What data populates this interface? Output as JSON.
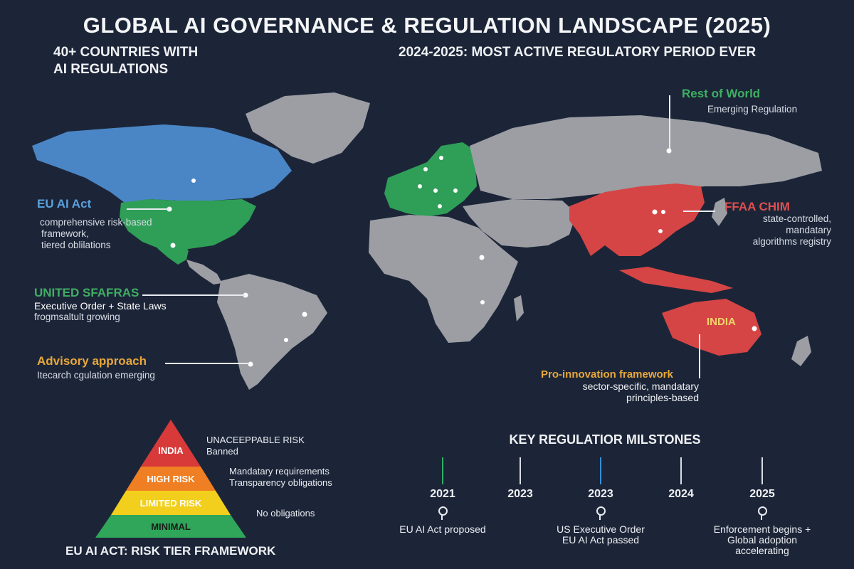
{
  "header": {
    "title": "GLOBAL AI GOVERNANCE & REGULATION LANDSCAPE (2025)",
    "stat_left_line1": "40+ COUNTRIES WITH",
    "stat_left_line2": "AI REGULATIONS",
    "stat_right": "2024-2025: MOST ACTIVE REGULATORY PERIOD EVER"
  },
  "colors": {
    "background": "#1c2538",
    "land": "#9c9ea3",
    "us_canada": "#4a86c6",
    "green_region": "#2f9e57",
    "red_region": "#d64545",
    "label_blue": "#5aa0dc",
    "label_green": "#3fae63",
    "label_red": "#e05050",
    "label_orange": "#e8a83a"
  },
  "map_labels": {
    "rest_of_world": {
      "title": "Rest of World",
      "desc": "Emerging Regulation"
    },
    "eu": {
      "title": "EU AI Act",
      "desc_lines": [
        "comprehensive risk-based",
        "framework,",
        "tiered oblilations"
      ]
    },
    "us": {
      "title": "UNITED SFAFRAS",
      "desc_line1": "Executive Order + State Laws",
      "desc_line2": "frogmsaltult growing"
    },
    "advisory": {
      "title": "Advisory approach",
      "desc": "Itecarch cgulation emerging"
    },
    "china": {
      "title": "FFAA CHIM",
      "desc_line1": "state-controlled, mandatary",
      "desc_line2": "algorithms registry"
    },
    "australia_tag": "INDIA",
    "pro_innovation": {
      "title": "Pro-innovation framework",
      "desc_line1": "sector-specific,  mandatary",
      "desc_line2": "principles-based"
    }
  },
  "pyramid": {
    "caption": "EU AI ACT: RISK TIER FRAMEWORK",
    "tiers": [
      {
        "label": "INDIA",
        "color": "#d83a3a",
        "text_color": "#ffffff",
        "note_lines": [
          "UNACEEPPABLE RISK",
          "Banned"
        ]
      },
      {
        "label": "HIGH RISK",
        "color": "#ef7f22",
        "text_color": "#ffffff",
        "note_lines": [
          "Mandatary requirements",
          "Transparency obligations"
        ]
      },
      {
        "label": "LIMITED RISK",
        "color": "#f2cf1d",
        "text_color": "#ffffff",
        "note_lines": []
      },
      {
        "label": "MINIMAL",
        "color": "#2fa65a",
        "text_color": "#1a1a1a",
        "note_lines": [
          "No obligations"
        ]
      }
    ]
  },
  "timeline": {
    "title": "KEY REGULATIOR MILSTONES",
    "milestones": [
      {
        "year": "2021",
        "tick_color": "#2fae63",
        "desc_lines": [
          "EU AI Act proposed"
        ]
      },
      {
        "year": "2023",
        "tick_color": "#d9dce2",
        "desc_lines": []
      },
      {
        "year": "2023",
        "tick_color": "#3b8fd8",
        "desc_lines": [
          "US Executive Order",
          "EU AI Act passed"
        ]
      },
      {
        "year": "2024",
        "tick_color": "#d9dce2",
        "desc_lines": []
      },
      {
        "year": "2025",
        "tick_color": "#d9dce2",
        "desc_lines": [
          "Enforcement begins +",
          "Global adoption",
          "accelerating"
        ]
      }
    ]
  }
}
